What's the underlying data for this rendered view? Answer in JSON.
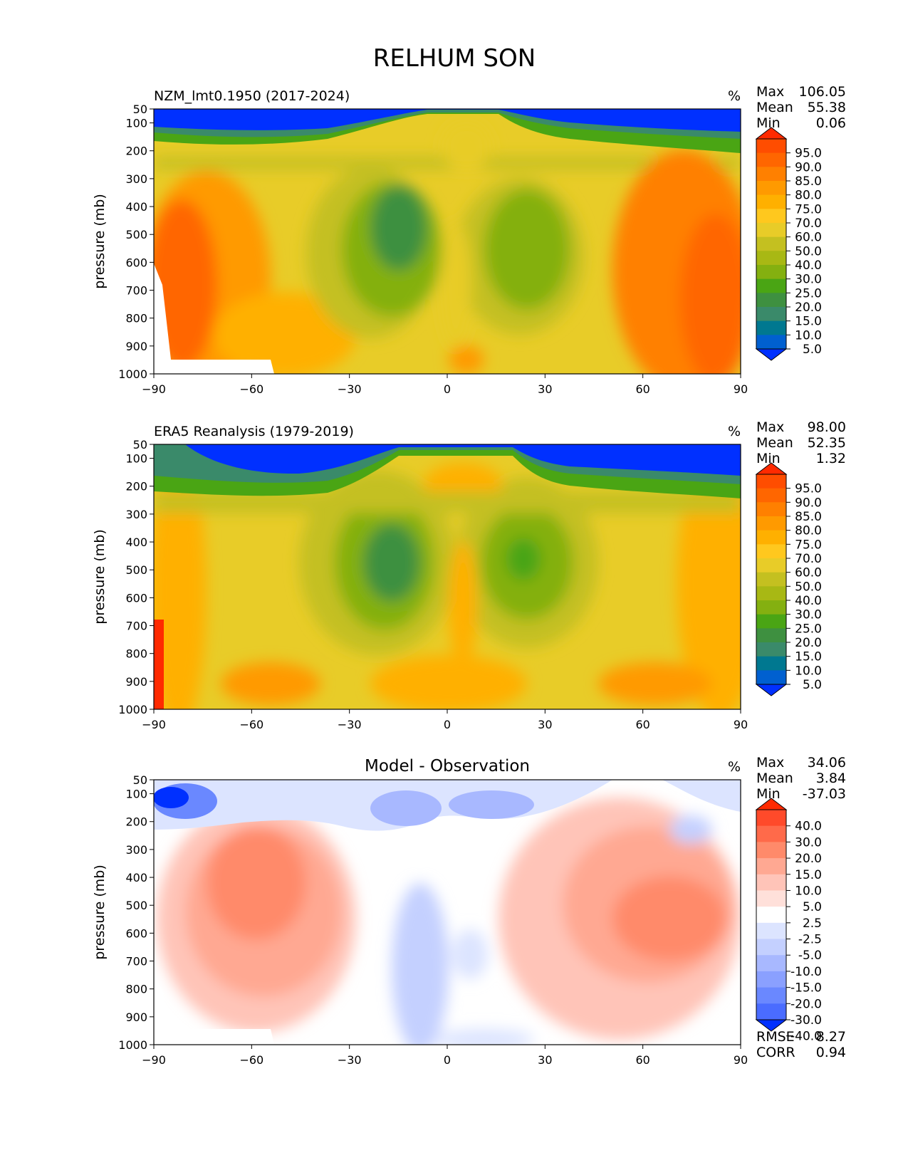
{
  "figure": {
    "title": "RELHUM SON"
  },
  "chart_data": [
    {
      "type": "heatmap",
      "title": "NZM_lmt0.1950 (2017-2024)",
      "units": "%",
      "stats": [
        {
          "label": "Max",
          "value": "106.05"
        },
        {
          "label": "Mean",
          "value": "55.38"
        },
        {
          "label": "Min",
          "value": "0.06"
        }
      ],
      "xlabel": "",
      "ylabel": "pressure (mb)",
      "xlim": [
        -90,
        90
      ],
      "ylim": [
        1000,
        50
      ],
      "xticks": [
        "−90",
        "−60",
        "−30",
        "0",
        "30",
        "60",
        "90"
      ],
      "yticks": [
        "50",
        "100",
        "200",
        "300",
        "400",
        "500",
        "600",
        "700",
        "800",
        "900",
        "1000"
      ],
      "colorbar": {
        "levels": [
          "95.0",
          "90.0",
          "85.0",
          "80.0",
          "75.0",
          "70.0",
          "60.0",
          "50.0",
          "40.0",
          "30.0",
          "25.0",
          "20.0",
          "15.0",
          "10.0",
          "5.0"
        ],
        "colors": [
          "#ff2a00",
          "#ff4d00",
          "#ff6600",
          "#ff8000",
          "#ff9a00",
          "#ffb000",
          "#ffc81e",
          "#e8cc28",
          "#c4c020",
          "#a8b814",
          "#84b010",
          "#4aa514",
          "#3e9040",
          "#3a8a6a",
          "#007890",
          "#0060d0",
          "#0030ff"
        ]
      }
    },
    {
      "type": "heatmap",
      "title": "ERA5 Reanalysis (1979-2019)",
      "units": "%",
      "stats": [
        {
          "label": "Max",
          "value": "98.00"
        },
        {
          "label": "Mean",
          "value": "52.35"
        },
        {
          "label": "Min",
          "value": "1.32"
        }
      ],
      "xlabel": "",
      "ylabel": "pressure (mb)",
      "xlim": [
        -90,
        90
      ],
      "ylim": [
        1000,
        50
      ],
      "xticks": [
        "−90",
        "−60",
        "−30",
        "0",
        "30",
        "60",
        "90"
      ],
      "yticks": [
        "50",
        "100",
        "200",
        "300",
        "400",
        "500",
        "600",
        "700",
        "800",
        "900",
        "1000"
      ],
      "colorbar": {
        "levels": [
          "95.0",
          "90.0",
          "85.0",
          "80.0",
          "75.0",
          "70.0",
          "60.0",
          "50.0",
          "40.0",
          "30.0",
          "25.0",
          "20.0",
          "15.0",
          "10.0",
          "5.0"
        ],
        "colors": [
          "#ff2a00",
          "#ff4d00",
          "#ff6600",
          "#ff8000",
          "#ff9a00",
          "#ffb000",
          "#ffc81e",
          "#e8cc28",
          "#c4c020",
          "#a8b814",
          "#84b010",
          "#4aa514",
          "#3e9040",
          "#3a8a6a",
          "#007890",
          "#0060d0",
          "#0030ff"
        ]
      }
    },
    {
      "type": "heatmap",
      "title": "Model - Observation",
      "units": "%",
      "stats": [
        {
          "label": "Max",
          "value": "34.06"
        },
        {
          "label": "Mean",
          "value": "3.84"
        },
        {
          "label": "Min",
          "value": "-37.03"
        }
      ],
      "extra_stats": [
        {
          "label": "RMSE",
          "value": "8.27"
        },
        {
          "label": "CORR",
          "value": "0.94"
        }
      ],
      "xlabel": "",
      "ylabel": "pressure (mb)",
      "xlim": [
        -90,
        90
      ],
      "ylim": [
        1000,
        50
      ],
      "xticks": [
        "−90",
        "−60",
        "−30",
        "0",
        "30",
        "60",
        "90"
      ],
      "yticks": [
        "50",
        "100",
        "200",
        "300",
        "400",
        "500",
        "600",
        "700",
        "800",
        "900",
        "1000"
      ],
      "colorbar": {
        "levels": [
          "40.0",
          "30.0",
          "20.0",
          "15.0",
          "10.0",
          "5.0",
          "2.5",
          "-2.5",
          "-5.0",
          "-10.0",
          "-15.0",
          "-20.0",
          "-30.0",
          "-40.0"
        ],
        "colors": [
          "#ff2a00",
          "#ff4a2a",
          "#ff6a4a",
          "#ff8a6a",
          "#ffa892",
          "#ffc4b8",
          "#ffe0da",
          "#ffffff",
          "#dce4ff",
          "#c4d0ff",
          "#a8b8ff",
          "#8aa0ff",
          "#6a88ff",
          "#4a6cff",
          "#0030ff"
        ]
      }
    }
  ]
}
